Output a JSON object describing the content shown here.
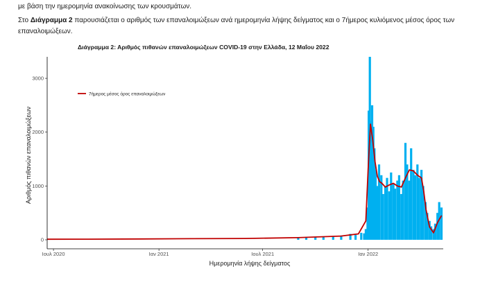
{
  "text": {
    "intro_line": "με βάση την ημερομηνία ανακοίνωσης των κρουσμάτων.",
    "para_prefix": "Στο ",
    "para_bold": "Διάγραμμα 2",
    "para_rest": " παρουσιάζεται ο αριθμός των επαναλοιμώξεων ανά ημερομηνία λήψης δείγματος και ο 7ήμερος κυλιόμενος μέσος όρος των επαναλοιμώξεων."
  },
  "colors": {
    "bars": "#00b0f0",
    "line": "#c00000",
    "axis": "#000000"
  },
  "chart_data": {
    "type": "bar",
    "title": "Διάγραμμα 2: Αριθμός πιθανών επαναλοιμώξεων COVID-19 στην Ελλάδα, 12 Μαΐου 2022",
    "xlabel": "Ημερομηνία λήψης δείγματος",
    "ylabel": "Αριθμός πιθανών επαναλοιμώξεων",
    "x_ticks": [
      "Ιουλ 2020",
      "Ιαν 2021",
      "Ιουλ 2021",
      "Ιαν 2022"
    ],
    "y_ticks": [
      0,
      1000,
      2000,
      3000
    ],
    "ylim": [
      0,
      3400
    ],
    "xlim": [
      "2020-06-20",
      "2022-05-12"
    ],
    "legend": {
      "position": "top-left",
      "entries": [
        "7ήμερος μέσος όρος επαναλοιμώξεων"
      ]
    },
    "grid": false,
    "series": [
      {
        "type": "bar",
        "x": [
          "2021-09-01",
          "2021-09-15",
          "2021-10-01",
          "2021-10-15",
          "2021-11-01",
          "2021-11-15",
          "2021-12-01",
          "2021-12-10",
          "2021-12-20",
          "2021-12-25",
          "2021-12-28",
          "2021-12-31",
          "2022-01-02",
          "2022-01-04",
          "2022-01-06",
          "2022-01-08",
          "2022-01-10",
          "2022-01-12",
          "2022-01-14",
          "2022-01-17",
          "2022-01-20",
          "2022-01-24",
          "2022-01-27",
          "2022-01-31",
          "2022-02-03",
          "2022-02-07",
          "2022-02-10",
          "2022-02-14",
          "2022-02-17",
          "2022-02-21",
          "2022-02-24",
          "2022-02-28",
          "2022-03-03",
          "2022-03-07",
          "2022-03-10",
          "2022-03-14",
          "2022-03-17",
          "2022-03-21",
          "2022-03-24",
          "2022-03-28",
          "2022-03-31",
          "2022-04-04",
          "2022-04-07",
          "2022-04-11",
          "2022-04-14",
          "2022-04-18",
          "2022-04-21",
          "2022-04-25",
          "2022-04-28",
          "2022-05-02",
          "2022-05-05",
          "2022-05-09"
        ],
        "values": [
          40,
          45,
          50,
          60,
          70,
          80,
          110,
          90,
          130,
          120,
          200,
          600,
          2400,
          3400,
          2200,
          2500,
          2100,
          1700,
          1300,
          1000,
          1400,
          1200,
          850,
          1000,
          1150,
          900,
          1250,
          1050,
          950,
          1100,
          1200,
          850,
          1100,
          1800,
          1400,
          1100,
          1700,
          1300,
          1200,
          1400,
          1150,
          1300,
          1000,
          700,
          500,
          350,
          250,
          200,
          300,
          500,
          700,
          600
        ]
      },
      {
        "name": "7ήμερος μέσος όρος επαναλοιμώξεων",
        "type": "line",
        "x": [
          "2020-06-20",
          "2020-09-01",
          "2020-12-01",
          "2021-03-01",
          "2021-06-01",
          "2021-09-01",
          "2021-11-15",
          "2021-12-15",
          "2021-12-28",
          "2022-01-01",
          "2022-01-05",
          "2022-01-09",
          "2022-01-13",
          "2022-01-17",
          "2022-01-21",
          "2022-01-25",
          "2022-01-31",
          "2022-02-07",
          "2022-02-14",
          "2022-02-21",
          "2022-02-28",
          "2022-03-07",
          "2022-03-14",
          "2022-03-21",
          "2022-03-28",
          "2022-04-04",
          "2022-04-08",
          "2022-04-12",
          "2022-04-18",
          "2022-04-25",
          "2022-05-02",
          "2022-05-09"
        ],
        "values": [
          10,
          12,
          15,
          20,
          25,
          40,
          70,
          110,
          350,
          1300,
          2150,
          1850,
          1450,
          1180,
          1080,
          1050,
          980,
          1020,
          1050,
          1000,
          980,
          1150,
          1300,
          1280,
          1200,
          1150,
          900,
          560,
          240,
          130,
          320,
          450
        ]
      }
    ]
  }
}
